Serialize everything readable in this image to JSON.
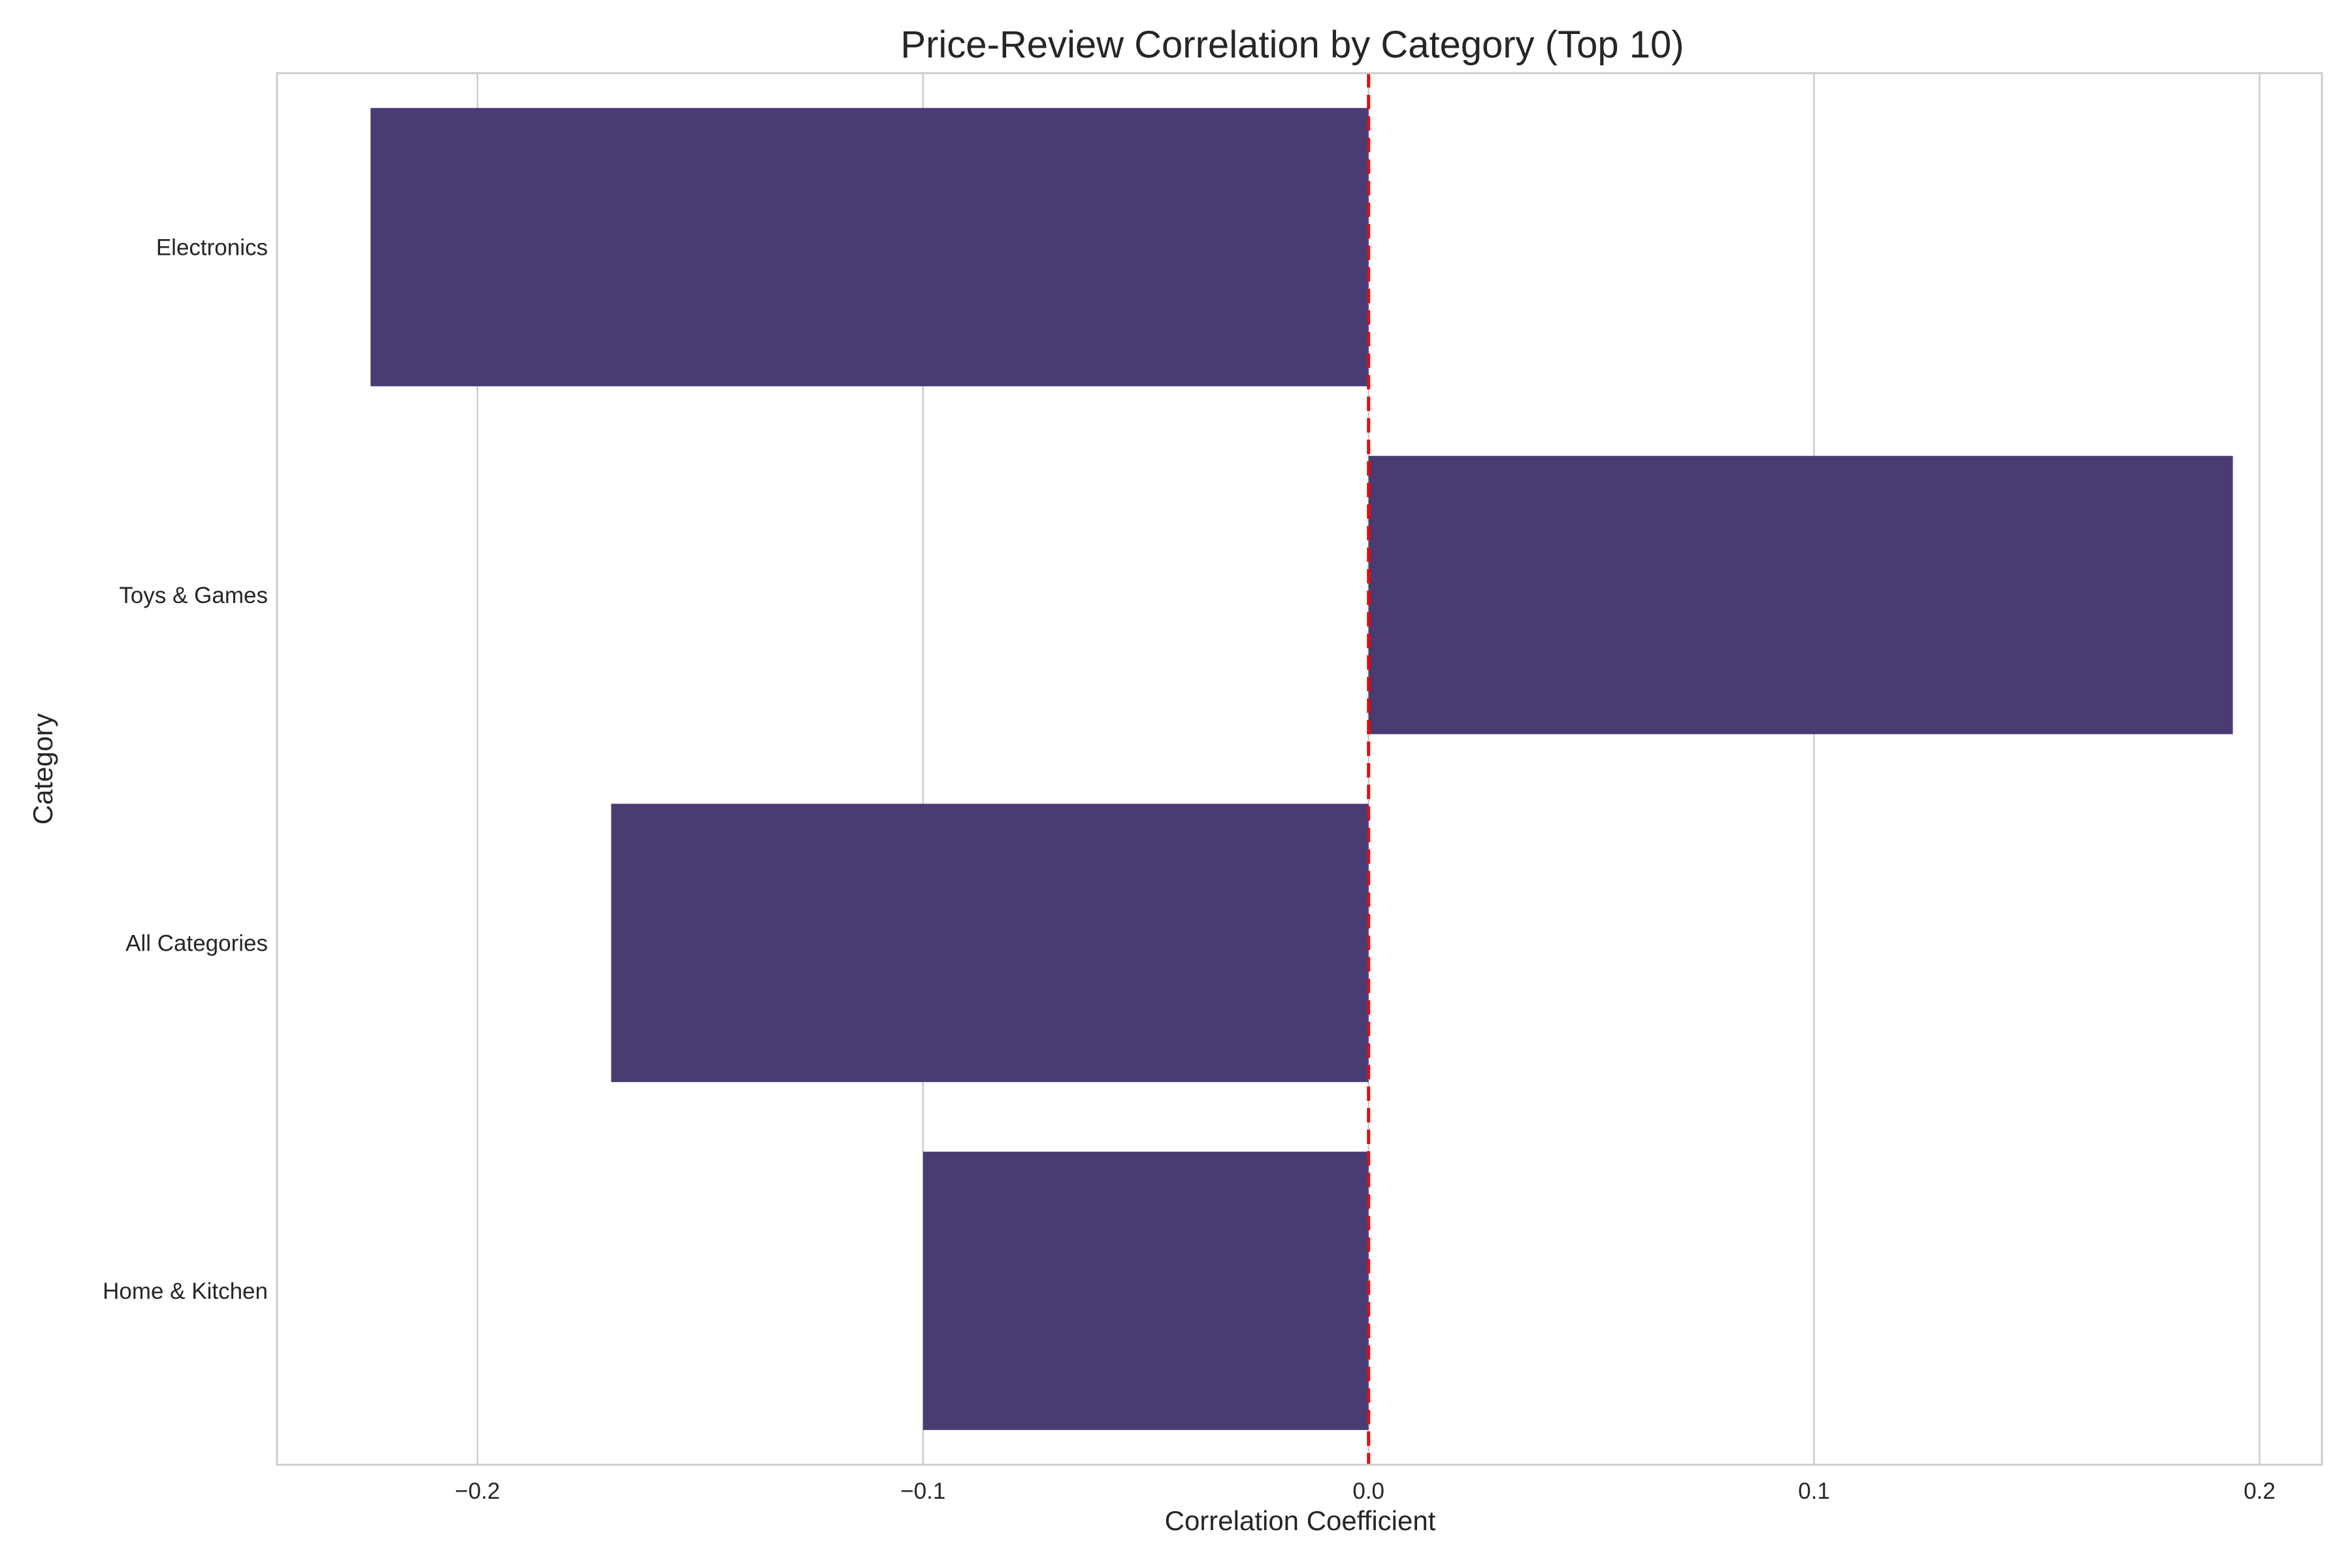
{
  "chart_data": {
    "type": "bar",
    "orientation": "horizontal",
    "title": "Price-Review Correlation by Category (Top 10)",
    "xlabel": "Correlation Coefficient",
    "ylabel": "Category",
    "categories": [
      "Electronics",
      "Toys & Games",
      "All Categories",
      "Home & Kitchen"
    ],
    "values": [
      -0.224,
      0.194,
      -0.17,
      -0.1
    ],
    "xlim": [
      -0.245,
      0.214
    ],
    "xticks": [
      -0.2,
      -0.1,
      0.0,
      0.1,
      0.2
    ],
    "xtick_labels": [
      "−0.2",
      "−0.1",
      "0.0",
      "0.1",
      "0.2"
    ],
    "reference_line": {
      "x": 0.0,
      "style": "dashed",
      "color": "#ff0000"
    },
    "grid": "x-axis only",
    "legend": "none",
    "bar_color": "#4a3b73"
  }
}
